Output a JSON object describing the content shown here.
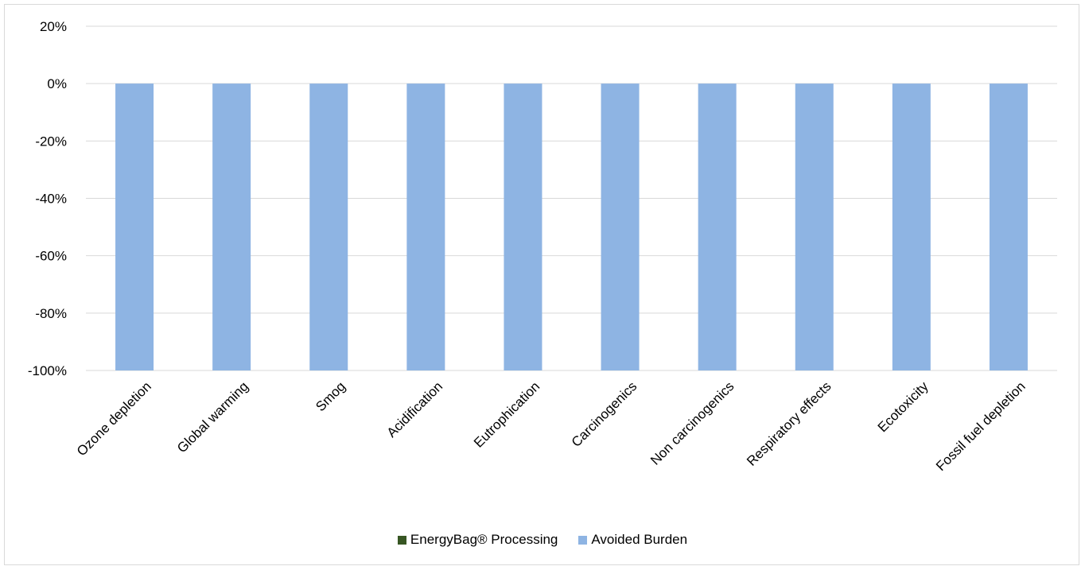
{
  "chart_data": {
    "type": "bar",
    "categories": [
      "Ozone depletion",
      "Global warming",
      "Smog",
      "Acidification",
      "Eutrophication",
      "Carcinogenics",
      "Non carcinogenics",
      "Respiratory effects",
      "Ecotoxicity",
      "Fossil fuel depletion"
    ],
    "series": [
      {
        "name": "EnergyBag® Processing",
        "color": "#375623",
        "values": [
          0,
          0,
          0,
          0,
          0,
          0,
          0,
          0,
          0,
          0
        ]
      },
      {
        "name": "Avoided Burden",
        "color": "#8eb4e3",
        "values": [
          -100,
          -100,
          -100,
          -100,
          -100,
          -100,
          -100,
          -100,
          -100,
          -100
        ]
      }
    ],
    "title": "",
    "xlabel": "",
    "ylabel": "",
    "ylim": [
      -100,
      20
    ],
    "yticks": [
      "20%",
      "0%",
      "-20%",
      "-40%",
      "-60%",
      "-80%",
      "-100%"
    ],
    "stacked": true,
    "grid": true,
    "legend_position": "bottom"
  }
}
